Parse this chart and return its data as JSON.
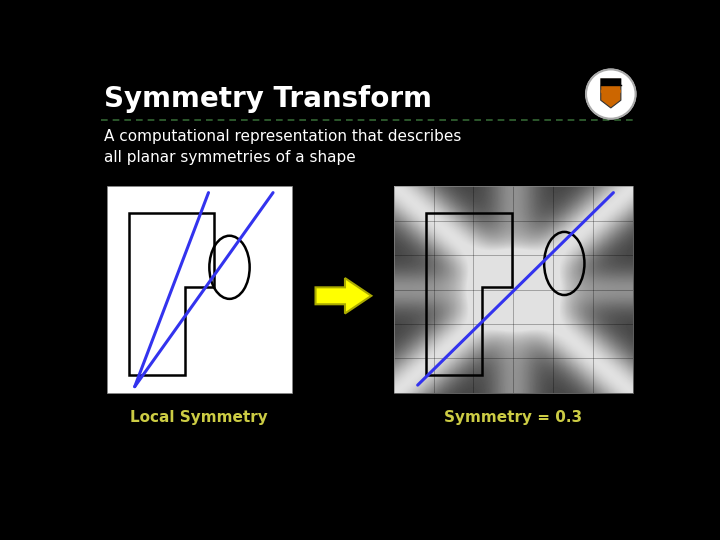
{
  "title": "Symmetry Transform",
  "subtitle": "A computational representation that describes\nall planar symmetries of a shape",
  "label_left": "Local Symmetry",
  "label_right": "Symmetry = 0.3",
  "bg_color": "#000000",
  "title_color": "#ffffff",
  "subtitle_color": "#ffffff",
  "label_color": "#cccc44",
  "divider_color": "#336633",
  "blue_line_color": "#3333ee",
  "shape_color": "#000000",
  "arrow_color": "#ffff00",
  "arrow_edge_color": "#aaaa00",
  "title_fontsize": 20,
  "subtitle_fontsize": 11,
  "label_fontsize": 11
}
